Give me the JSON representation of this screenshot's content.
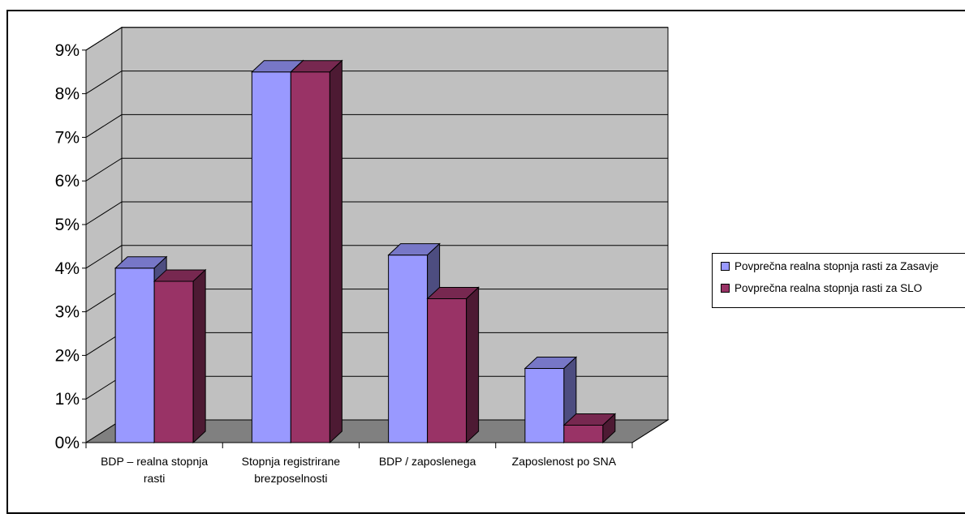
{
  "chart_data": {
    "type": "bar",
    "categories": [
      [
        "BDP – realna stopnja",
        "rasti"
      ],
      [
        "Stopnja registrirane",
        "brezposelnosti"
      ],
      [
        "BDP / zaposlenega",
        ""
      ],
      [
        "Zaposlenost po SNA",
        ""
      ]
    ],
    "series": [
      {
        "name": "Povprečna realna stopnja rasti za Zasavje",
        "color": "#9999ff",
        "values": [
          4.0,
          8.5,
          4.3,
          1.7
        ]
      },
      {
        "name": "Povprečna realna stopnja rasti za  SLO",
        "color": "#993366",
        "values": [
          3.7,
          8.5,
          3.3,
          0.4
        ]
      }
    ],
    "yticks": [
      "0%",
      "1%",
      "2%",
      "3%",
      "4%",
      "5%",
      "6%",
      "7%",
      "8%",
      "9%"
    ],
    "ylim": [
      0,
      9
    ],
    "grid": true,
    "legend_position": "right",
    "wall_color": "#c0c0c0",
    "floor_color": "#808080"
  }
}
